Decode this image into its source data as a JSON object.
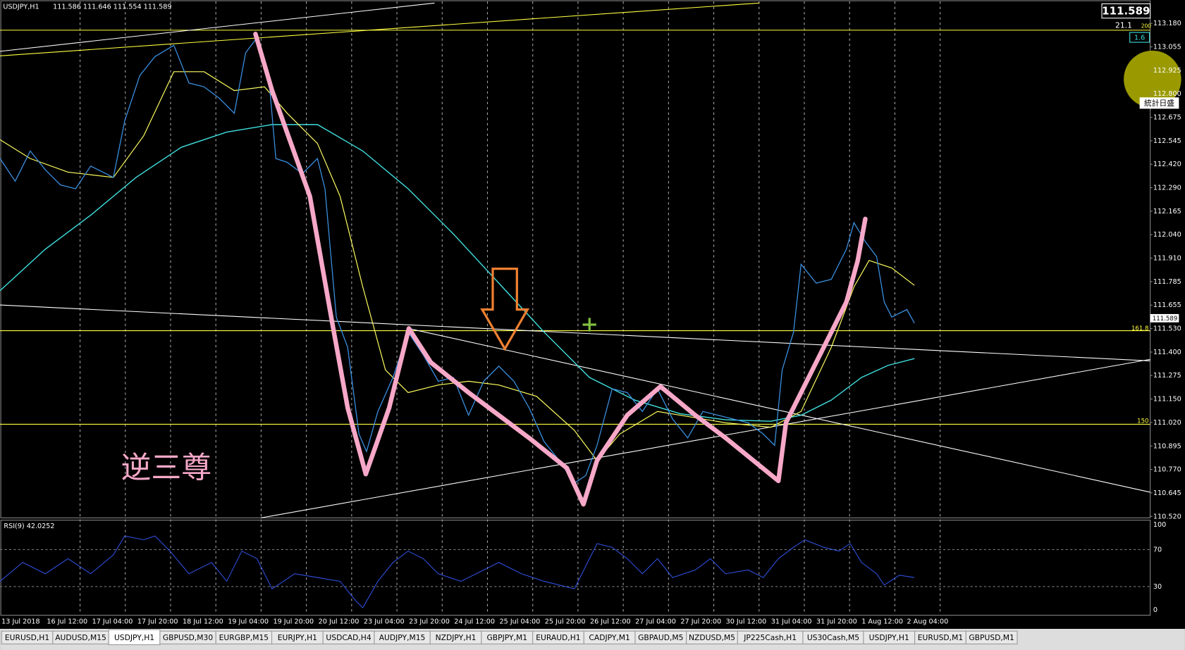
{
  "header": {
    "symbol": "USDJPY,H1",
    "ohlc": "111.586 111.646 111.554 111.589"
  },
  "price_box": {
    "bid": "111.589",
    "spread": "21.1",
    "level": "1.6",
    "level_tag": "200"
  },
  "current_price_tag": "111.589",
  "levels": {
    "fib_1618": "161.8",
    "fib_150": "150"
  },
  "price_axis": [
    "113.180",
    "113.055",
    "112.925",
    "112.800",
    "112.675",
    "112.545",
    "112.420",
    "112.290",
    "112.165",
    "112.040",
    "111.910",
    "111.785",
    "111.655",
    "111.530",
    "111.400",
    "111.275",
    "111.150",
    "111.020",
    "110.895",
    "110.770",
    "110.645",
    "110.520"
  ],
  "rsi": {
    "label": "RSI(9) 42.0252",
    "axis": [
      "100",
      "70",
      "30",
      "0"
    ]
  },
  "time_axis": [
    "13 Jul 2018",
    "16 Jul 12:00",
    "17 Jul 04:00",
    "17 Jul 20:00",
    "18 Jul 12:00",
    "19 Jul 04:00",
    "19 Jul 20:00",
    "20 Jul 12:00",
    "23 Jul 04:00",
    "23 Jul 20:00",
    "24 Jul 12:00",
    "25 Jul 04:00",
    "25 Jul 20:00",
    "26 Jul 12:00",
    "27 Jul 04:00",
    "27 Jul 20:00",
    "30 Jul 12:00",
    "31 Jul 04:00",
    "31 Jul 20:00",
    "1 Aug 12:00",
    "2 Aug 04:00"
  ],
  "annotation": "逆三尊",
  "side_button": "統計日盛",
  "tabs": [
    "EURUSD,H1",
    "AUDUSD,M15",
    "USDJPY,H1",
    "GBPUSD,M30",
    "EURGBP,M15",
    "EURJPY,H1",
    "USDCAD,H4",
    "AUDJPY,M15",
    "NZDJPY,H1",
    "GBPJPY,M1",
    "EURAUD,H1",
    "CADJPY,M1",
    "GBPAUD,M5",
    "NZDUSD,M5",
    "JP225Cash,H1",
    "US30Cash,M5",
    "USDJPY,H1",
    "EURUSD,M1",
    "GBPUSD,M1"
  ]
}
